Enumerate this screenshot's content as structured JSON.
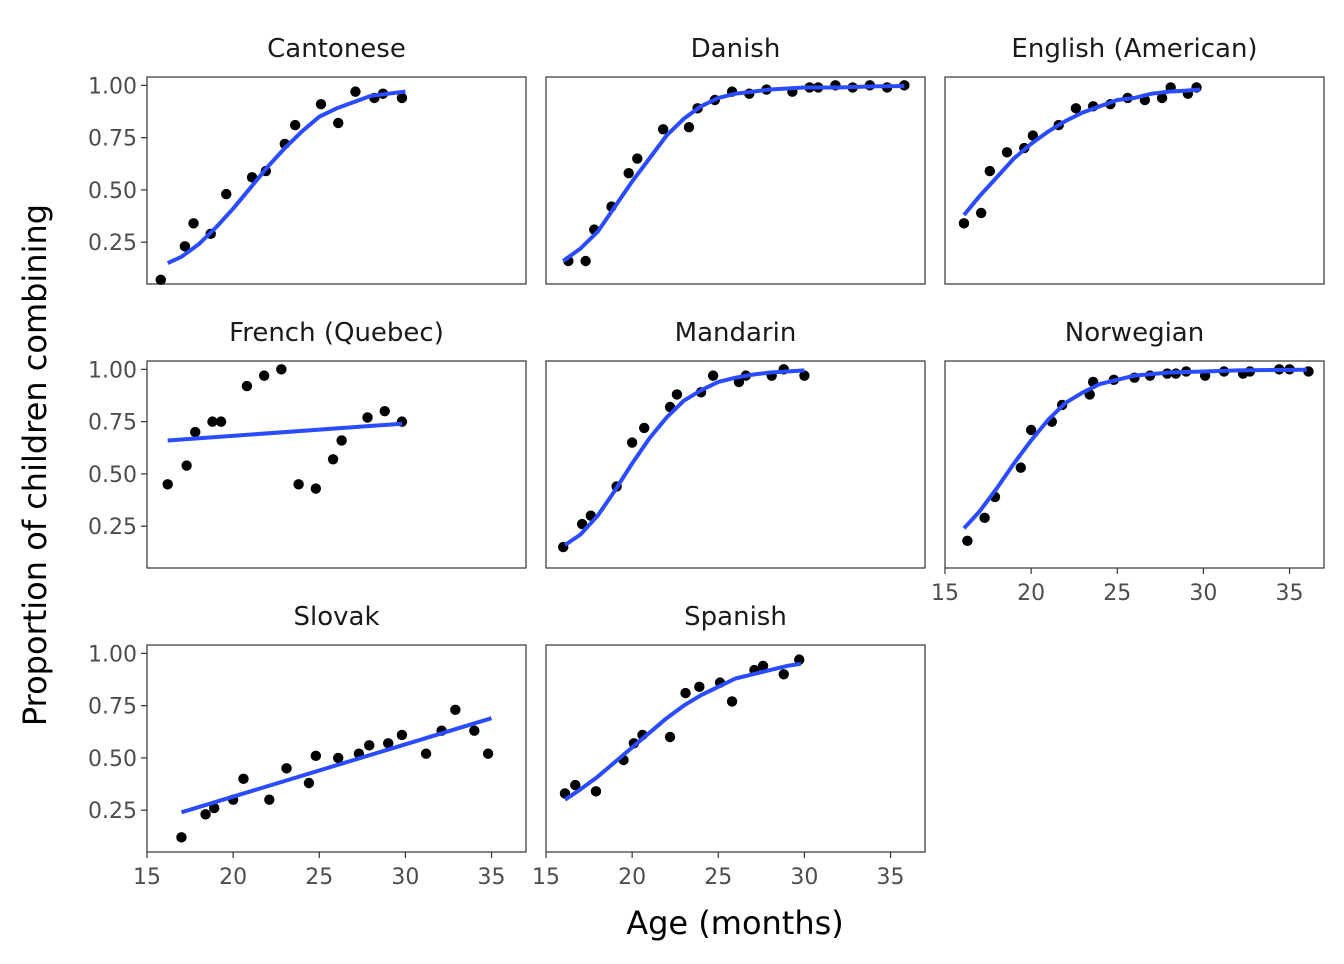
{
  "chart_data": {
    "type": "scatter",
    "xlabel": "Age (months)",
    "ylabel": "Proportion of children combining",
    "xlim": [
      15,
      37
    ],
    "ylim": [
      0.05,
      1.04
    ],
    "x_ticks": [
      15,
      20,
      25,
      30,
      35
    ],
    "y_ticks": [
      0.25,
      0.5,
      0.75,
      1.0
    ],
    "y_tick_labels": [
      "0.25",
      "0.50",
      "0.75",
      "1.00"
    ],
    "point_color": "#000000",
    "line_color": "#2A4BFF",
    "grid": false,
    "layout": "facet-wrap-3-columns",
    "panels": [
      {
        "title": "Cantonese",
        "points": [
          [
            15.8,
            0.07
          ],
          [
            17.2,
            0.23
          ],
          [
            17.7,
            0.34
          ],
          [
            18.7,
            0.29
          ],
          [
            19.6,
            0.48
          ],
          [
            21.1,
            0.56
          ],
          [
            21.9,
            0.59
          ],
          [
            23.0,
            0.72
          ],
          [
            23.6,
            0.81
          ],
          [
            25.1,
            0.91
          ],
          [
            26.1,
            0.82
          ],
          [
            27.1,
            0.97
          ],
          [
            28.2,
            0.94
          ],
          [
            28.7,
            0.96
          ],
          [
            29.8,
            0.94
          ]
        ],
        "fit": [
          [
            16.2,
            0.15
          ],
          [
            17,
            0.18
          ],
          [
            18,
            0.24
          ],
          [
            19,
            0.32
          ],
          [
            20,
            0.41
          ],
          [
            21,
            0.51
          ],
          [
            22,
            0.61
          ],
          [
            23,
            0.7
          ],
          [
            24,
            0.78
          ],
          [
            25,
            0.85
          ],
          [
            26,
            0.89
          ],
          [
            27,
            0.92
          ],
          [
            28,
            0.95
          ],
          [
            29,
            0.96
          ],
          [
            30,
            0.97
          ]
        ]
      },
      {
        "title": "Danish",
        "points": [
          [
            16.3,
            0.16
          ],
          [
            17.3,
            0.16
          ],
          [
            17.8,
            0.31
          ],
          [
            18.8,
            0.42
          ],
          [
            19.8,
            0.58
          ],
          [
            20.3,
            0.65
          ],
          [
            21.8,
            0.79
          ],
          [
            23.3,
            0.8
          ],
          [
            23.8,
            0.89
          ],
          [
            24.8,
            0.93
          ],
          [
            25.8,
            0.97
          ],
          [
            26.8,
            0.96
          ],
          [
            27.8,
            0.98
          ],
          [
            29.3,
            0.97
          ],
          [
            30.3,
            0.99
          ],
          [
            30.8,
            0.99
          ],
          [
            31.8,
            1.0
          ],
          [
            32.8,
            0.99
          ],
          [
            33.8,
            1.0
          ],
          [
            34.8,
            0.99
          ],
          [
            35.8,
            1.0
          ]
        ],
        "fit": [
          [
            16.0,
            0.16
          ],
          [
            17,
            0.22
          ],
          [
            18,
            0.3
          ],
          [
            19,
            0.42
          ],
          [
            20,
            0.54
          ],
          [
            21,
            0.65
          ],
          [
            22,
            0.76
          ],
          [
            23,
            0.84
          ],
          [
            24,
            0.9
          ],
          [
            25,
            0.94
          ],
          [
            26,
            0.96
          ],
          [
            28,
            0.98
          ],
          [
            30,
            0.99
          ],
          [
            32,
            0.99
          ],
          [
            34,
            0.995
          ],
          [
            35.8,
            0.997
          ]
        ]
      },
      {
        "title": "English (American)",
        "points": [
          [
            16.1,
            0.34
          ],
          [
            17.1,
            0.39
          ],
          [
            17.6,
            0.59
          ],
          [
            18.6,
            0.68
          ],
          [
            19.6,
            0.7
          ],
          [
            20.1,
            0.76
          ],
          [
            21.6,
            0.81
          ],
          [
            22.6,
            0.89
          ],
          [
            23.6,
            0.9
          ],
          [
            24.6,
            0.91
          ],
          [
            25.6,
            0.94
          ],
          [
            26.6,
            0.93
          ],
          [
            27.6,
            0.94
          ],
          [
            28.1,
            0.99
          ],
          [
            29.1,
            0.96
          ],
          [
            29.6,
            0.99
          ]
        ],
        "fit": [
          [
            16.1,
            0.38
          ],
          [
            17,
            0.47
          ],
          [
            18,
            0.56
          ],
          [
            19,
            0.65
          ],
          [
            20,
            0.72
          ],
          [
            21,
            0.78
          ],
          [
            22,
            0.83
          ],
          [
            23,
            0.87
          ],
          [
            24,
            0.9
          ],
          [
            25,
            0.93
          ],
          [
            26,
            0.94
          ],
          [
            27,
            0.96
          ],
          [
            28,
            0.97
          ],
          [
            29,
            0.975
          ],
          [
            29.8,
            0.98
          ]
        ]
      },
      {
        "title": "French (Quebec)",
        "points": [
          [
            16.2,
            0.45
          ],
          [
            17.3,
            0.54
          ],
          [
            17.8,
            0.7
          ],
          [
            18.8,
            0.75
          ],
          [
            19.3,
            0.75
          ],
          [
            20.8,
            0.92
          ],
          [
            21.8,
            0.97
          ],
          [
            22.8,
            1.0
          ],
          [
            23.8,
            0.45
          ],
          [
            24.8,
            0.43
          ],
          [
            25.8,
            0.57
          ],
          [
            26.3,
            0.66
          ],
          [
            27.8,
            0.77
          ],
          [
            28.8,
            0.8
          ],
          [
            29.8,
            0.75
          ]
        ],
        "fit": [
          [
            16.2,
            0.66
          ],
          [
            29.8,
            0.74
          ]
        ]
      },
      {
        "title": "Mandarin",
        "points": [
          [
            16.0,
            0.15
          ],
          [
            17.1,
            0.26
          ],
          [
            17.6,
            0.3
          ],
          [
            19.1,
            0.44
          ],
          [
            20.0,
            0.65
          ],
          [
            20.7,
            0.72
          ],
          [
            22.2,
            0.82
          ],
          [
            22.6,
            0.88
          ],
          [
            24.0,
            0.89
          ],
          [
            24.7,
            0.97
          ],
          [
            26.2,
            0.94
          ],
          [
            26.6,
            0.97
          ],
          [
            28.1,
            0.97
          ],
          [
            28.8,
            1.0
          ],
          [
            30.0,
            0.97
          ]
        ],
        "fit": [
          [
            16.1,
            0.16
          ],
          [
            17,
            0.21
          ],
          [
            18,
            0.3
          ],
          [
            19,
            0.42
          ],
          [
            20,
            0.55
          ],
          [
            21,
            0.67
          ],
          [
            22,
            0.77
          ],
          [
            23,
            0.85
          ],
          [
            24,
            0.9
          ],
          [
            25,
            0.94
          ],
          [
            26,
            0.96
          ],
          [
            27,
            0.975
          ],
          [
            28,
            0.985
          ],
          [
            29,
            0.99
          ],
          [
            30,
            0.995
          ]
        ]
      },
      {
        "title": "Norwegian",
        "points": [
          [
            16.3,
            0.18
          ],
          [
            17.3,
            0.29
          ],
          [
            17.9,
            0.39
          ],
          [
            19.4,
            0.53
          ],
          [
            20.0,
            0.71
          ],
          [
            21.2,
            0.75
          ],
          [
            21.8,
            0.83
          ],
          [
            23.4,
            0.88
          ],
          [
            23.6,
            0.94
          ],
          [
            24.8,
            0.95
          ],
          [
            26.0,
            0.96
          ],
          [
            26.9,
            0.97
          ],
          [
            27.9,
            0.98
          ],
          [
            28.4,
            0.98
          ],
          [
            29.0,
            0.99
          ],
          [
            30.1,
            0.97
          ],
          [
            31.2,
            0.99
          ],
          [
            32.3,
            0.98
          ],
          [
            32.7,
            0.99
          ],
          [
            34.4,
            1.0
          ],
          [
            35.0,
            1.0
          ],
          [
            36.1,
            0.99
          ]
        ],
        "fit": [
          [
            16.1,
            0.24
          ],
          [
            17,
            0.32
          ],
          [
            18,
            0.43
          ],
          [
            19,
            0.55
          ],
          [
            20,
            0.66
          ],
          [
            21,
            0.76
          ],
          [
            22,
            0.84
          ],
          [
            23,
            0.89
          ],
          [
            24,
            0.93
          ],
          [
            25,
            0.95
          ],
          [
            26,
            0.97
          ],
          [
            28,
            0.985
          ],
          [
            30,
            0.99
          ],
          [
            32,
            0.995
          ],
          [
            34,
            0.997
          ],
          [
            36,
            0.998
          ]
        ]
      },
      {
        "title": "Slovak",
        "points": [
          [
            17.0,
            0.12
          ],
          [
            18.4,
            0.23
          ],
          [
            18.9,
            0.26
          ],
          [
            20.0,
            0.3
          ],
          [
            20.6,
            0.4
          ],
          [
            22.1,
            0.3
          ],
          [
            23.1,
            0.45
          ],
          [
            24.4,
            0.38
          ],
          [
            24.8,
            0.51
          ],
          [
            26.1,
            0.5
          ],
          [
            27.3,
            0.52
          ],
          [
            27.9,
            0.56
          ],
          [
            29.0,
            0.57
          ],
          [
            29.8,
            0.61
          ],
          [
            31.2,
            0.52
          ],
          [
            32.1,
            0.63
          ],
          [
            32.9,
            0.73
          ],
          [
            34.0,
            0.63
          ],
          [
            34.8,
            0.52
          ]
        ],
        "fit": [
          [
            17.0,
            0.24
          ],
          [
            35.0,
            0.69
          ]
        ]
      },
      {
        "title": "Spanish",
        "points": [
          [
            16.1,
            0.33
          ],
          [
            16.7,
            0.37
          ],
          [
            17.9,
            0.34
          ],
          [
            19.5,
            0.49
          ],
          [
            20.1,
            0.57
          ],
          [
            20.6,
            0.61
          ],
          [
            22.2,
            0.6
          ],
          [
            23.1,
            0.81
          ],
          [
            23.9,
            0.84
          ],
          [
            25.1,
            0.86
          ],
          [
            25.8,
            0.77
          ],
          [
            27.1,
            0.92
          ],
          [
            27.6,
            0.94
          ],
          [
            28.8,
            0.9
          ],
          [
            29.7,
            0.97
          ]
        ],
        "fit": [
          [
            16.1,
            0.3
          ],
          [
            17,
            0.35
          ],
          [
            18,
            0.41
          ],
          [
            19,
            0.48
          ],
          [
            20,
            0.55
          ],
          [
            21,
            0.62
          ],
          [
            22,
            0.69
          ],
          [
            23,
            0.75
          ],
          [
            24,
            0.8
          ],
          [
            25,
            0.84
          ],
          [
            26,
            0.88
          ],
          [
            27,
            0.9
          ],
          [
            28,
            0.92
          ],
          [
            29,
            0.94
          ],
          [
            29.8,
            0.95
          ]
        ]
      }
    ]
  }
}
